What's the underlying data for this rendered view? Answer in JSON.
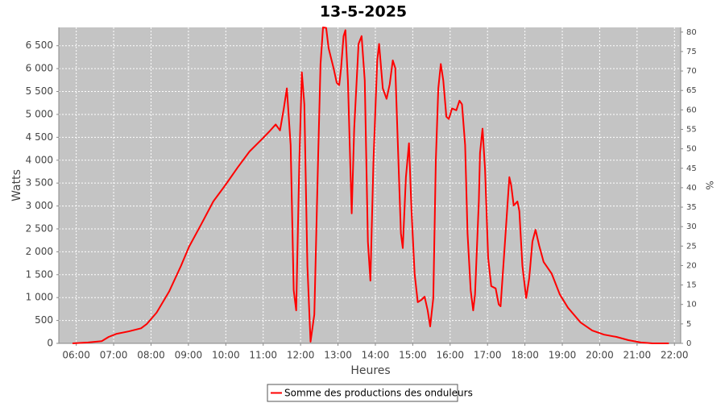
{
  "chart_data": {
    "type": "line",
    "title": "13-5-2025",
    "xlabel": "Heures",
    "ylabel": "Watts",
    "y2label": "%",
    "x": [
      "05:54",
      "06:19",
      "06:41",
      "06:52",
      "07:05",
      "07:24",
      "07:44",
      "07:53",
      "08:09",
      "08:29",
      "08:48",
      "09:01",
      "09:21",
      "09:40",
      "09:59",
      "10:19",
      "10:38",
      "10:58",
      "11:10",
      "11:20",
      "11:27",
      "11:33",
      "11:38",
      "11:44",
      "11:49",
      "11:53",
      "11:58",
      "12:02",
      "12:06",
      "12:11",
      "12:16",
      "12:22",
      "12:28",
      "12:32",
      "12:36",
      "12:41",
      "12:45",
      "12:53",
      "12:58",
      "13:02",
      "13:05",
      "13:09",
      "13:12",
      "13:16",
      "13:20",
      "13:22",
      "13:26",
      "13:33",
      "13:38",
      "13:43",
      "13:48",
      "13:52",
      "13:57",
      "14:03",
      "14:06",
      "14:12",
      "14:18",
      "14:23",
      "14:28",
      "14:32",
      "14:37",
      "14:41",
      "14:44",
      "14:49",
      "14:54",
      "14:58",
      "15:03",
      "15:08",
      "15:14",
      "15:19",
      "15:24",
      "15:28",
      "15:33",
      "15:37",
      "15:41",
      "15:45",
      "15:49",
      "15:54",
      "15:58",
      "16:03",
      "16:10",
      "16:15",
      "16:19",
      "16:24",
      "16:28",
      "16:33",
      "16:37",
      "16:40",
      "16:46",
      "16:48",
      "16:52",
      "16:56",
      "17:01",
      "17:06",
      "17:13",
      "17:18",
      "17:21",
      "17:28",
      "17:35",
      "17:38",
      "17:42",
      "17:48",
      "17:51",
      "17:56",
      "18:02",
      "18:07",
      "18:12",
      "18:17",
      "18:23",
      "18:30",
      "18:43",
      "18:56",
      "19:09",
      "19:29",
      "19:48",
      "20:07",
      "20:27",
      "20:46",
      "21:06",
      "21:25",
      "21:51"
    ],
    "series": [
      {
        "name": "Somme des productions des onduleurs",
        "color": "#ff0000",
        "values": [
          0,
          20,
          50,
          140,
          210,
          260,
          330,
          420,
          670,
          1130,
          1690,
          2110,
          2610,
          3100,
          3450,
          3840,
          4190,
          4460,
          4630,
          4780,
          4650,
          5130,
          5570,
          4330,
          1160,
          720,
          3980,
          5920,
          5220,
          1690,
          35,
          630,
          3980,
          6100,
          6900,
          6890,
          6450,
          6010,
          5690,
          5640,
          6010,
          6710,
          6840,
          5740,
          3810,
          2840,
          4690,
          6540,
          6710,
          5740,
          2220,
          1370,
          3980,
          6180,
          6540,
          5570,
          5340,
          5660,
          6180,
          6010,
          3980,
          2400,
          2080,
          3630,
          4370,
          2920,
          1520,
          900,
          950,
          1020,
          720,
          370,
          990,
          3980,
          5570,
          6100,
          5740,
          4950,
          4900,
          5130,
          5090,
          5300,
          5220,
          4330,
          2400,
          1160,
          720,
          1070,
          3100,
          4160,
          4690,
          3810,
          1870,
          1250,
          1200,
          850,
          810,
          2220,
          3630,
          3450,
          3010,
          3100,
          2890,
          1690,
          990,
          1430,
          2220,
          2480,
          2130,
          1780,
          1520,
          1070,
          780,
          460,
          280,
          190,
          140,
          70,
          20,
          0,
          0
        ]
      }
    ],
    "xlim": [
      "05:32",
      "22:10"
    ],
    "xticks": [
      "06:00",
      "07:00",
      "08:00",
      "09:00",
      "10:00",
      "11:00",
      "12:00",
      "13:00",
      "14:00",
      "15:00",
      "16:00",
      "17:00",
      "18:00",
      "19:00",
      "20:00",
      "21:00",
      "22:00"
    ],
    "ylim": [
      0,
      6900
    ],
    "yticks": [
      0,
      500,
      {
        "value": 1000,
        "label": "1 000"
      },
      {
        "value": 1500,
        "label": "1 500"
      },
      {
        "value": 2000,
        "label": "2 000"
      },
      {
        "value": 2500,
        "label": "2 500"
      },
      {
        "value": 3000,
        "label": "3 000"
      },
      {
        "value": 3500,
        "label": "3 500"
      },
      {
        "value": 4000,
        "label": "4 000"
      },
      {
        "value": 4500,
        "label": "4 500"
      },
      {
        "value": 5000,
        "label": "5 000"
      },
      {
        "value": 5500,
        "label": "5 500"
      },
      {
        "value": 6000,
        "label": "6 000"
      },
      {
        "value": 6500,
        "label": "6 500"
      }
    ],
    "y2lim": [
      0,
      81.2
    ],
    "y2ticks": [
      0,
      5,
      10,
      15,
      20,
      25,
      30,
      35,
      40,
      45,
      50,
      55,
      60,
      65,
      70,
      75,
      80
    ],
    "grid": true,
    "legend": "bottom"
  }
}
